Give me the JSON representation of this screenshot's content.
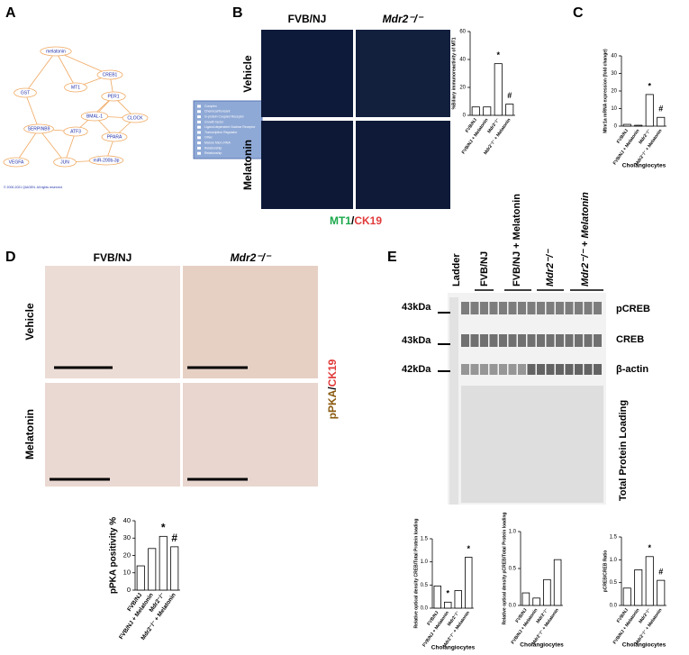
{
  "panel_labels": [
    "A",
    "B",
    "C",
    "D",
    "E"
  ],
  "network": {
    "nodes": [
      "melatonin",
      "CREB1",
      "MT1",
      "PER1",
      "GST",
      "BMAL-1",
      "CLOCK",
      "PPARA",
      "SERPINB9",
      "ATF3",
      "VEGFA",
      "JUN",
      "miR-200b-3p"
    ],
    "copyright": "© 2000-2021 QIAGEN. All rights reserved.",
    "legend": [
      "Complex",
      "Chemical/Toxicant",
      "G-protein Coupled Receptor",
      "Growth factor",
      "Ligand-dependent Nuclear Receptor",
      "Transcription Regulator",
      "Other",
      "Mature Micro RNA",
      "Relationship",
      "Relationship"
    ]
  },
  "panel_b": {
    "columns": [
      "FVB/NJ",
      "Mdr2⁻/⁻"
    ],
    "rows": [
      "Vehicle",
      "Melatonin"
    ],
    "stain": [
      "MT1",
      "/",
      "CK19"
    ]
  },
  "panel_d": {
    "columns": [
      "FVB/NJ",
      "Mdr2⁻/⁻"
    ],
    "rows": [
      "Vehicle",
      "Melatonin"
    ],
    "stain": [
      "pPKA",
      "/",
      "CK19"
    ]
  },
  "panel_e": {
    "lanes": [
      "Ladder",
      "FVB/NJ",
      "FVB/NJ + Melatonin",
      "Mdr2⁻/⁻",
      "Mdr2⁻/⁻ + Melatonin"
    ],
    "markers": [
      "43kDa",
      "43kDa",
      "42kDa"
    ],
    "bands": [
      "pCREB",
      "CREB",
      "β-actin",
      "Total Protein Loading"
    ]
  },
  "chart_data": [
    {
      "type": "bar",
      "ylabel": "%Biliary immunoreactivity of MT1",
      "categories": [
        "FVB/NJ",
        "FVB/NJ + Melatonin",
        "Mdr2⁻/⁻",
        "Mdr2⁻/⁻ + Melatonin"
      ],
      "values": [
        6,
        6,
        37,
        8
      ],
      "annotations": [
        null,
        null,
        "*",
        "#"
      ],
      "color": "#ffffff",
      "ylim": [
        0,
        60
      ],
      "yticks": [
        0,
        20,
        40,
        60
      ]
    },
    {
      "type": "bar",
      "ylabel": "Mtnr1a mRNA expression (fold change)",
      "xlabel": "Cholangiocytes",
      "categories": [
        "FVB/NJ",
        "FVB/NJ + Melatonin",
        "Mdr2⁻/⁻",
        "Mdr2⁻/⁻ + Melatonin"
      ],
      "values": [
        1,
        0.5,
        18,
        5
      ],
      "annotations": [
        null,
        null,
        "*",
        "#"
      ],
      "color": "#ffffff",
      "ylim": [
        0,
        40
      ],
      "yticks": [
        0,
        10,
        20,
        30,
        40
      ]
    },
    {
      "type": "bar",
      "ylabel": "pPKA positivity %",
      "categories": [
        "FVB/NJ",
        "FVB/NJ + Melatonin",
        "Mdr2⁻/⁻",
        "Mdr2⁻/⁻ + Melatonin"
      ],
      "values": [
        14,
        24,
        31,
        25
      ],
      "annotations": [
        null,
        null,
        "*",
        "#"
      ],
      "color": "#ffffff",
      "ylim": [
        0,
        40
      ],
      "yticks": [
        0,
        10,
        20,
        30,
        40
      ]
    },
    {
      "type": "bar",
      "ylabel": "Relative optical density CREB/Total Protein loading",
      "xlabel": "Cholangiocytes",
      "categories": [
        "FVB/NJ",
        "FVB/NJ + Melatonin",
        "Mdr2⁻/⁻",
        "Mdr2⁻/⁻ + Melatonin"
      ],
      "values": [
        0.48,
        0.13,
        0.38,
        1.1
      ],
      "annotations": [
        null,
        "*",
        null,
        "*"
      ],
      "color": "#ffffff",
      "ylim": [
        0,
        1.5
      ],
      "yticks": [
        {
          "value": 0,
          "label": "0.0"
        },
        0.5,
        {
          "value": 1,
          "label": "1.0"
        },
        1.5
      ]
    },
    {
      "type": "bar",
      "ylabel": "Relative optical density pCREB/Total Protein loading",
      "xlabel": "Cholangiocytes",
      "categories": [
        "FVB/NJ",
        "FVB/NJ + Melatonin",
        "Mdr2⁻/⁻",
        "Mdr2⁻/⁻ + Melatonin"
      ],
      "values": [
        0.17,
        0.1,
        0.35,
        0.62
      ],
      "annotations": [
        null,
        null,
        null,
        null
      ],
      "color": "#ffffff",
      "ylim": [
        0,
        1
      ],
      "yticks": [
        {
          "value": 0,
          "label": "0.0"
        },
        0.5,
        {
          "value": 1,
          "label": "1.0"
        }
      ]
    },
    {
      "type": "bar",
      "ylabel": "pCREB/CREB Ratio",
      "xlabel": "Cholangiocytes",
      "categories": [
        "FVB/NJ",
        "FVB/NJ + Melatonin",
        "Mdr2⁻/⁻",
        "Mdr2⁻/⁻ + Melatonin"
      ],
      "values": [
        0.38,
        0.78,
        1.07,
        0.55
      ],
      "annotations": [
        null,
        null,
        "*",
        "#"
      ],
      "color": "#ffffff",
      "ylim": [
        0,
        1.5
      ],
      "yticks": [
        {
          "value": 0,
          "label": "0.0"
        },
        0.5,
        {
          "value": 1,
          "label": "1.0"
        },
        1.5
      ]
    }
  ]
}
